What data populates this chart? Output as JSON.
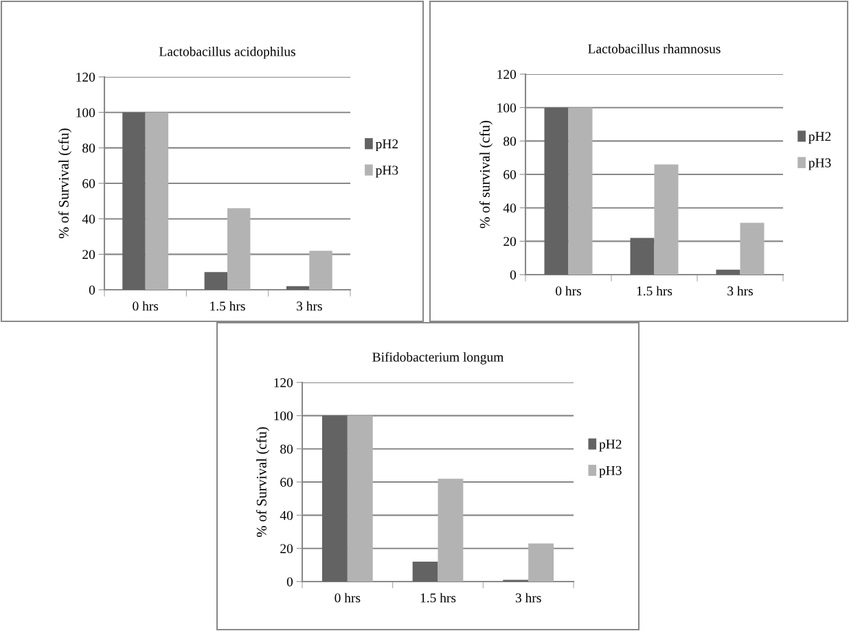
{
  "chart_data": [
    {
      "type": "bar",
      "title": "Lactobacillus acidophilus",
      "ylabel": "% of Survival (cfu)",
      "categories": [
        "0 hrs",
        "1.5 hrs",
        "3 hrs"
      ],
      "series": [
        {
          "name": "pH2",
          "color": "#636363",
          "values": [
            100,
            10,
            2
          ]
        },
        {
          "name": "pH3",
          "color": "#b3b3b3",
          "values": [
            100,
            46,
            22
          ]
        }
      ],
      "ylim": [
        0,
        120
      ],
      "yticks": [
        0,
        20,
        40,
        60,
        80,
        100,
        120
      ],
      "grid": "y",
      "legend": "right"
    },
    {
      "type": "bar",
      "title": "Lactobacillus rhamnosus",
      "ylabel": "% of survival (cfu)",
      "categories": [
        "0 hrs",
        "1.5 hrs",
        "3 hrs"
      ],
      "series": [
        {
          "name": "pH2",
          "color": "#636363",
          "values": [
            100,
            22,
            3
          ]
        },
        {
          "name": "pH3",
          "color": "#b3b3b3",
          "values": [
            100,
            66,
            31
          ]
        }
      ],
      "ylim": [
        0,
        120
      ],
      "yticks": [
        0,
        20,
        40,
        60,
        80,
        100,
        120
      ],
      "grid": "y",
      "legend": "right"
    },
    {
      "type": "bar",
      "title": "Bifidobacterium longum",
      "ylabel": "% of Survival (cfu)",
      "categories": [
        "0 hrs",
        "1.5 hrs",
        "3 hrs"
      ],
      "series": [
        {
          "name": "pH2",
          "color": "#636363",
          "values": [
            100,
            12,
            1
          ]
        },
        {
          "name": "pH3",
          "color": "#b3b3b3",
          "values": [
            100,
            62,
            23
          ]
        }
      ],
      "ylim": [
        0,
        120
      ],
      "yticks": [
        0,
        20,
        40,
        60,
        80,
        100,
        120
      ],
      "grid": "y",
      "legend": "right"
    }
  ]
}
